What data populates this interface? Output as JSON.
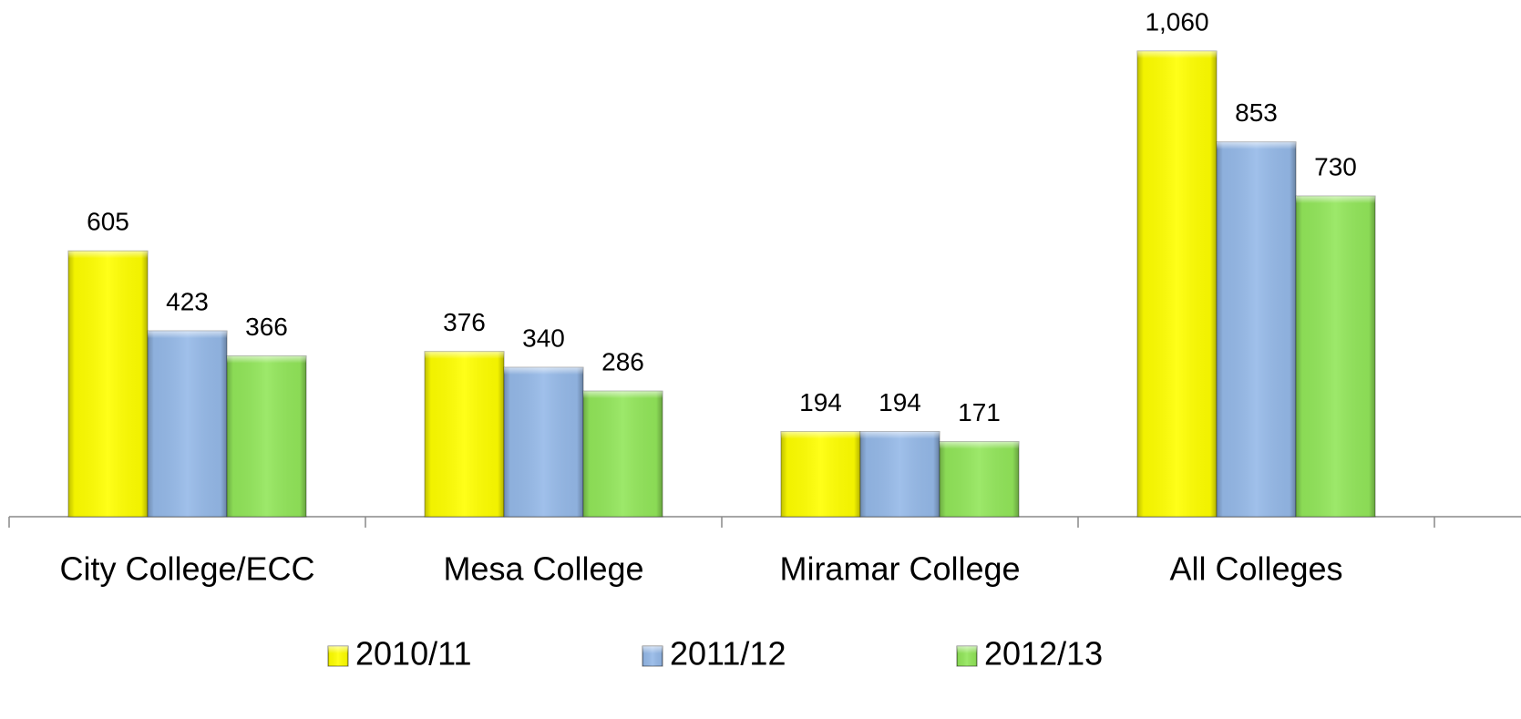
{
  "chart_data": {
    "type": "bar",
    "categories": [
      "City College/ECC",
      "Mesa College",
      "Miramar College",
      "All Colleges"
    ],
    "series": [
      {
        "name": "2010/11",
        "color": "#ffff00",
        "values": [
          605,
          376,
          194,
          1060
        ],
        "value_labels": [
          "605",
          "376",
          "194",
          "1,060"
        ]
      },
      {
        "name": "2011/12",
        "color": "#95b9e8",
        "values": [
          423,
          340,
          194,
          853
        ]
      },
      {
        "name": "2012/13",
        "color": "#92e65a",
        "values": [
          366,
          286,
          171,
          730
        ]
      }
    ]
  }
}
